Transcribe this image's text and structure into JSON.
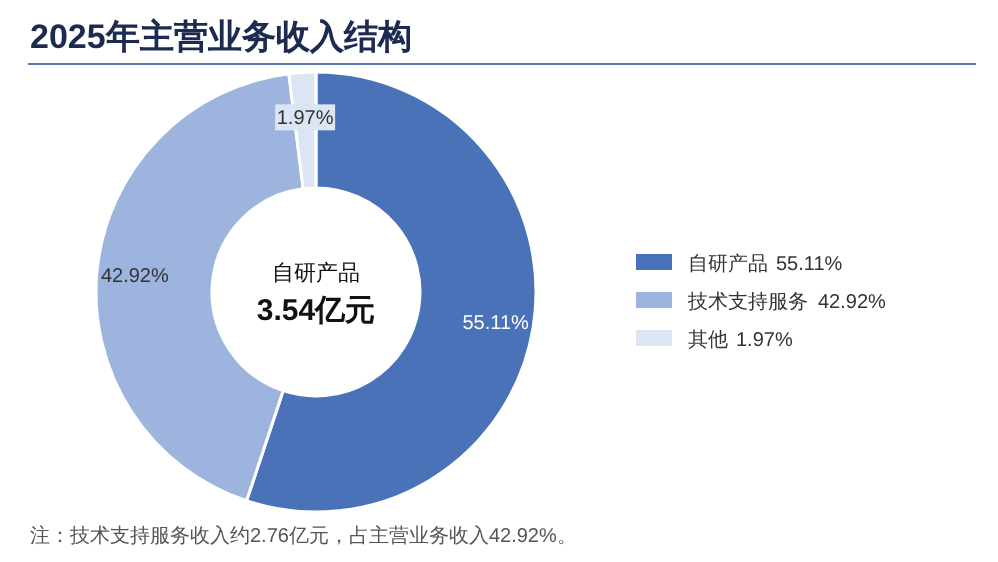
{
  "chart_data": {
    "type": "donut",
    "title": "2025年主营业务收入结构",
    "categories": [
      "自研产品",
      "技术支持服务",
      "其他"
    ],
    "values": [
      55.11,
      42.92,
      1.97
    ],
    "colors": [
      "#4a72b8",
      "#9db5de",
      "#dce5f3"
    ],
    "value_labels": [
      "55.11%",
      "42.92%",
      "1.97%"
    ],
    "legend": "right",
    "annotations": [
      "自研产品",
      "3.54亿元",
      "注：技术支持服务收入约2.76亿元，占主营业务收入42.92%。"
    ]
  }
}
